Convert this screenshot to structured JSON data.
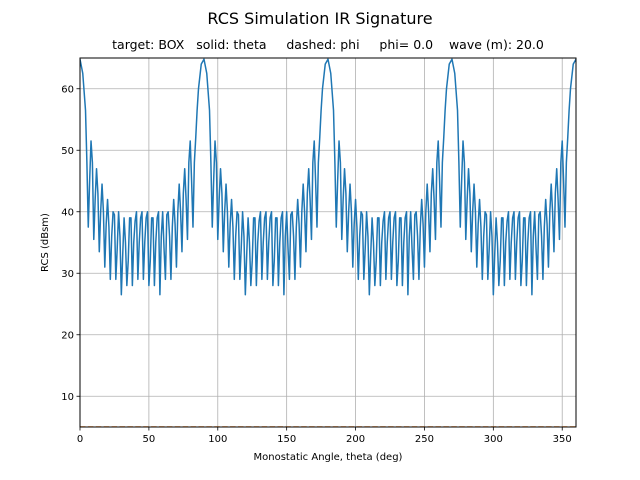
{
  "chart_data": {
    "type": "line",
    "title": "RCS Simulation IR Signature",
    "subtitle": "target: BOX   solid: theta     dashed: phi     phi= 0.0    wave (m): 20.0",
    "xlabel": "Monostatic Angle, theta (deg)",
    "ylabel": "RCS (dBsm)",
    "xlim": [
      0,
      360
    ],
    "ylim": [
      5,
      65
    ],
    "xticks": [
      "0",
      "50",
      "100",
      "150",
      "200",
      "250",
      "300",
      "350"
    ],
    "yticks": [
      "10",
      "20",
      "30",
      "40",
      "50",
      "60"
    ],
    "grid": true,
    "period_deg": 90,
    "series": [
      {
        "style": "solid",
        "color": "#1f77b4",
        "x_one_period": [
          0,
          2,
          4,
          5,
          6,
          7,
          8,
          9,
          10,
          11,
          12,
          13,
          14,
          15,
          16,
          17,
          18,
          19,
          20,
          21,
          22,
          23,
          24,
          25,
          26,
          27,
          28,
          29,
          30,
          31,
          32,
          33,
          34,
          35,
          36,
          37,
          38,
          39,
          40,
          41,
          42,
          43,
          44,
          45,
          46,
          47,
          48,
          49,
          50,
          51,
          52,
          53,
          54,
          55,
          56,
          57,
          58,
          59,
          60,
          61,
          62,
          63,
          64,
          65,
          66,
          67,
          68,
          69,
          70,
          71,
          72,
          73,
          74,
          75,
          76,
          77,
          78,
          79,
          80,
          81,
          82,
          83,
          84,
          85,
          86,
          88
        ],
        "y_one_period": [
          64.8,
          62.5,
          56.5,
          48.0,
          37.5,
          45.0,
          51.5,
          48.0,
          35.5,
          42.0,
          47.0,
          43.0,
          33.5,
          40.0,
          44.5,
          40.0,
          31.0,
          38.0,
          42.0,
          37.5,
          29.0,
          36.0,
          40.0,
          39.5,
          29.0,
          34.0,
          40.0,
          36.0,
          26.5,
          33.0,
          39.0,
          35.0,
          28.0,
          32.0,
          39.0,
          39.0,
          28.0,
          35.0,
          38.5,
          40.0,
          29.0,
          35.0,
          39.0,
          40.0,
          29.0,
          35.0,
          39.0,
          40.0,
          28.0,
          32.0,
          39.0,
          39.0,
          28.0,
          35.0,
          39.0,
          40.0,
          26.5,
          36.0,
          40.0,
          34.0,
          29.0,
          39.5,
          40.0,
          36.0,
          29.0,
          37.5,
          42.0,
          38.0,
          31.0,
          40.0,
          44.5,
          40.0,
          33.5,
          43.0,
          47.0,
          42.0,
          35.5,
          48.0,
          51.5,
          45.0,
          37.5,
          48.0,
          52.0,
          56.5,
          60.0,
          64.0
        ]
      },
      {
        "style": "dashed",
        "color": "#ff7f0e",
        "x": [
          0,
          360
        ],
        "y": [
          5.0,
          5.0
        ]
      }
    ]
  }
}
